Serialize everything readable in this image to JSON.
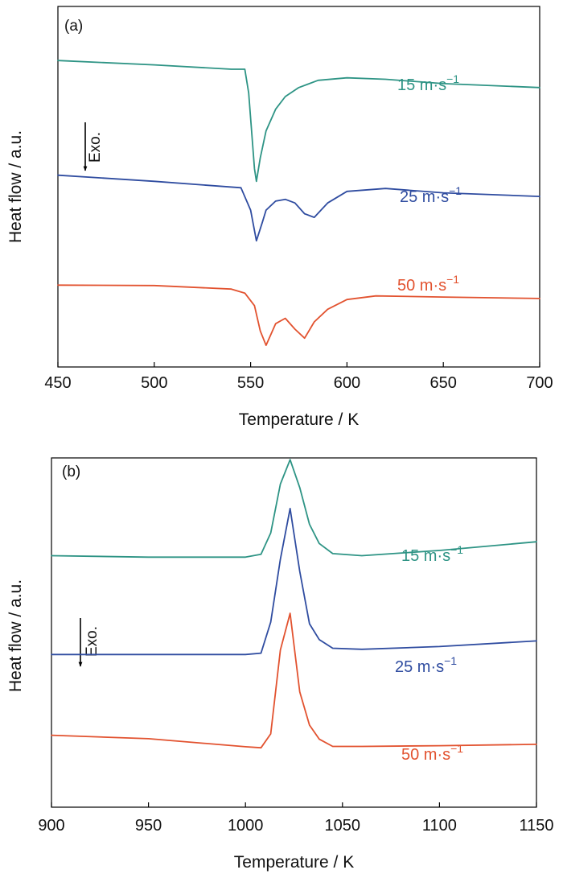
{
  "chart_data": [
    {
      "type": "line",
      "panel_label": "(a)",
      "xlabel": "Temperature / K",
      "ylabel": "Heat flow / a.u.",
      "annotation": "Exo.",
      "xlim": [
        450,
        700
      ],
      "xticks": [
        450,
        500,
        550,
        600,
        650,
        700
      ],
      "ylim": [
        0,
        100
      ],
      "series": [
        {
          "name": "15 m·s",
          "name_sup": "−1",
          "color": "#2e9485",
          "x": [
            450,
            500,
            540,
            547,
            549,
            552,
            553,
            555,
            558,
            563,
            568,
            575,
            585,
            600,
            620,
            650,
            700
          ],
          "y": [
            85.0,
            83.8,
            82.6,
            82.6,
            76.0,
            55.0,
            51.5,
            58.0,
            65.5,
            71.5,
            75.0,
            77.5,
            79.5,
            80.2,
            79.8,
            78.6,
            77.5
          ]
        },
        {
          "name": "25 m·s",
          "name_sup": "−1",
          "color": "#2f4ca0",
          "x": [
            450,
            500,
            545,
            550,
            553,
            556,
            558,
            563,
            568,
            573,
            578,
            583,
            590,
            600,
            620,
            650,
            700
          ],
          "y": [
            53.2,
            51.5,
            49.7,
            43.5,
            35.0,
            40.0,
            43.5,
            46.0,
            46.5,
            45.5,
            42.5,
            41.5,
            45.5,
            48.7,
            49.5,
            48.3,
            47.3
          ]
        },
        {
          "name": "50 m·s",
          "name_sup": "−1",
          "color": "#e2522f",
          "x": [
            450,
            500,
            540,
            547,
            552,
            555,
            558,
            563,
            568,
            573,
            578,
            583,
            590,
            600,
            615,
            650,
            700
          ],
          "y": [
            22.7,
            22.6,
            21.6,
            20.5,
            17.0,
            10.0,
            6.0,
            12.0,
            13.5,
            10.5,
            8.0,
            12.5,
            16.0,
            18.7,
            19.7,
            19.4,
            19.0
          ]
        }
      ]
    },
    {
      "type": "line",
      "panel_label": "(b)",
      "xlabel": "Temperature / K",
      "ylabel": "Heat flow / a.u.",
      "annotation": "Exo.",
      "xlim": [
        900,
        1150
      ],
      "xticks": [
        900,
        950,
        1000,
        1050,
        1100,
        1150
      ],
      "ylim": [
        0,
        100
      ],
      "series": [
        {
          "name": "15 m·s",
          "name_sup": "−1",
          "color": "#2e9485",
          "x": [
            900,
            950,
            1000,
            1008,
            1013,
            1018,
            1023,
            1028,
            1033,
            1038,
            1045,
            1060,
            1100,
            1150
          ],
          "y": [
            72.0,
            71.6,
            71.6,
            72.4,
            78.5,
            92.5,
            99.5,
            91.5,
            81.0,
            75.5,
            72.6,
            72.0,
            73.5,
            76.0
          ]
        },
        {
          "name": "25 m·s",
          "name_sup": "−1",
          "color": "#2f4ca0",
          "x": [
            900,
            950,
            1000,
            1008,
            1013,
            1018,
            1023,
            1028,
            1033,
            1038,
            1045,
            1060,
            1100,
            1150
          ],
          "y": [
            43.7,
            43.7,
            43.7,
            44.1,
            53.0,
            71.0,
            85.5,
            67.5,
            52.5,
            48.0,
            45.5,
            45.2,
            46.0,
            47.6
          ]
        },
        {
          "name": "50 m·s",
          "name_sup": "−1",
          "color": "#e2522f",
          "x": [
            900,
            950,
            1000,
            1008,
            1013,
            1018,
            1023,
            1028,
            1033,
            1038,
            1045,
            1060,
            1100,
            1150
          ],
          "y": [
            20.6,
            19.6,
            17.3,
            17.0,
            21.0,
            45.0,
            55.5,
            33.0,
            23.5,
            19.5,
            17.4,
            17.4,
            17.6,
            18.0
          ]
        }
      ]
    }
  ]
}
